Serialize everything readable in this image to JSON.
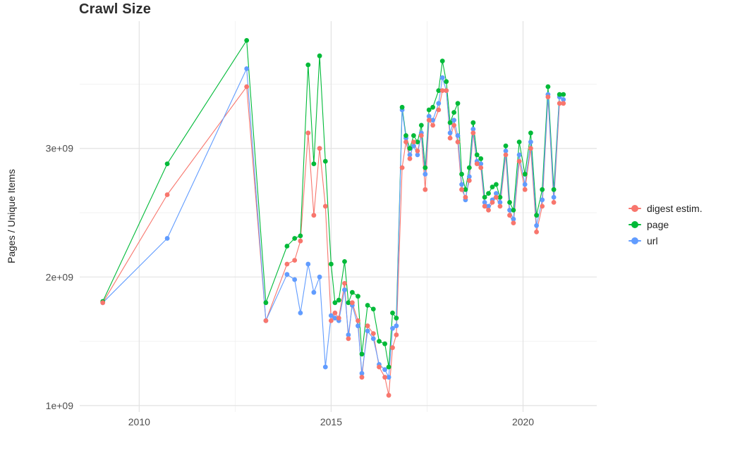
{
  "chart_data": {
    "type": "line",
    "title": "Crawl Size",
    "xlabel": "",
    "ylabel": "Pages / Unique Items",
    "y_unit": "billions (1e9)",
    "grid": "major and minor, light gray on white",
    "legend_position": "right",
    "xlim": [
      2008.45,
      2021.92
    ],
    "ylim": [
      0.95,
      3.99
    ],
    "xticks": {
      "values": [
        2010,
        2015,
        2020
      ],
      "labels": [
        "2010",
        "2015",
        "2020"
      ]
    },
    "yticks": {
      "values": [
        1,
        2,
        3
      ],
      "labels": [
        "1e+09",
        "2e+09",
        "3e+09"
      ]
    },
    "x": [
      2009.05,
      2010.73,
      2012.8,
      2013.3,
      2013.85,
      2014.05,
      2014.2,
      2014.4,
      2014.55,
      2014.7,
      2014.85,
      2015.0,
      2015.1,
      2015.2,
      2015.35,
      2015.45,
      2015.55,
      2015.7,
      2015.8,
      2015.95,
      2016.1,
      2016.25,
      2016.4,
      2016.5,
      2016.6,
      2016.7,
      2016.85,
      2016.95,
      2017.05,
      2017.15,
      2017.25,
      2017.35,
      2017.45,
      2017.55,
      2017.65,
      2017.8,
      2017.9,
      2018.0,
      2018.1,
      2018.2,
      2018.3,
      2018.4,
      2018.5,
      2018.6,
      2018.7,
      2018.8,
      2018.9,
      2019.0,
      2019.1,
      2019.2,
      2019.3,
      2019.4,
      2019.55,
      2019.65,
      2019.75,
      2019.9,
      2020.05,
      2020.2,
      2020.35,
      2020.5,
      2020.65,
      2020.8,
      2020.95,
      2021.05
    ],
    "series": [
      {
        "name": "digest estim.",
        "color": "#F8766D",
        "values": [
          1.8,
          2.64,
          3.48,
          1.66,
          2.1,
          2.13,
          2.28,
          3.12,
          2.48,
          3.0,
          2.55,
          1.66,
          1.72,
          1.68,
          1.95,
          1.52,
          1.8,
          1.66,
          1.22,
          1.62,
          1.56,
          1.3,
          1.22,
          1.08,
          1.45,
          1.55,
          2.85,
          3.05,
          2.92,
          3.05,
          2.98,
          3.1,
          2.68,
          3.22,
          3.18,
          3.3,
          3.45,
          3.45,
          3.08,
          3.18,
          3.05,
          2.68,
          2.62,
          2.75,
          3.12,
          2.88,
          2.85,
          2.55,
          2.52,
          2.58,
          2.62,
          2.55,
          2.95,
          2.48,
          2.42,
          2.9,
          2.68,
          3.0,
          2.35,
          2.55,
          3.4,
          2.58,
          3.35,
          3.35
        ]
      },
      {
        "name": "page",
        "color": "#00BA38",
        "values": [
          1.81,
          2.88,
          3.84,
          1.8,
          2.24,
          2.3,
          2.32,
          3.65,
          2.88,
          3.72,
          2.9,
          2.1,
          1.8,
          1.82,
          2.12,
          1.8,
          1.88,
          1.85,
          1.4,
          1.78,
          1.75,
          1.5,
          1.48,
          1.3,
          1.72,
          1.68,
          3.32,
          3.1,
          3.0,
          3.1,
          3.05,
          3.18,
          2.85,
          3.3,
          3.32,
          3.45,
          3.68,
          3.52,
          3.2,
          3.28,
          3.35,
          2.8,
          2.68,
          2.85,
          3.2,
          2.95,
          2.92,
          2.62,
          2.65,
          2.7,
          2.72,
          2.62,
          3.02,
          2.58,
          2.52,
          3.05,
          2.8,
          3.12,
          2.48,
          2.68,
          3.48,
          2.68,
          3.42,
          3.42
        ]
      },
      {
        "name": "url",
        "color": "#619CFF",
        "values": [
          1.8,
          2.3,
          3.62,
          1.66,
          2.02,
          1.98,
          1.72,
          2.1,
          1.88,
          2.0,
          1.3,
          1.7,
          1.68,
          1.66,
          1.9,
          1.55,
          1.78,
          1.62,
          1.25,
          1.58,
          1.52,
          1.32,
          1.28,
          1.22,
          1.6,
          1.62,
          3.3,
          3.08,
          2.95,
          3.02,
          2.95,
          3.12,
          2.8,
          3.25,
          3.22,
          3.35,
          3.55,
          3.45,
          3.12,
          3.22,
          3.1,
          2.72,
          2.6,
          2.78,
          3.15,
          2.9,
          2.88,
          2.58,
          2.55,
          2.6,
          2.65,
          2.58,
          2.98,
          2.52,
          2.45,
          2.95,
          2.72,
          3.05,
          2.4,
          2.6,
          3.42,
          2.62,
          3.4,
          3.38
        ]
      }
    ]
  }
}
